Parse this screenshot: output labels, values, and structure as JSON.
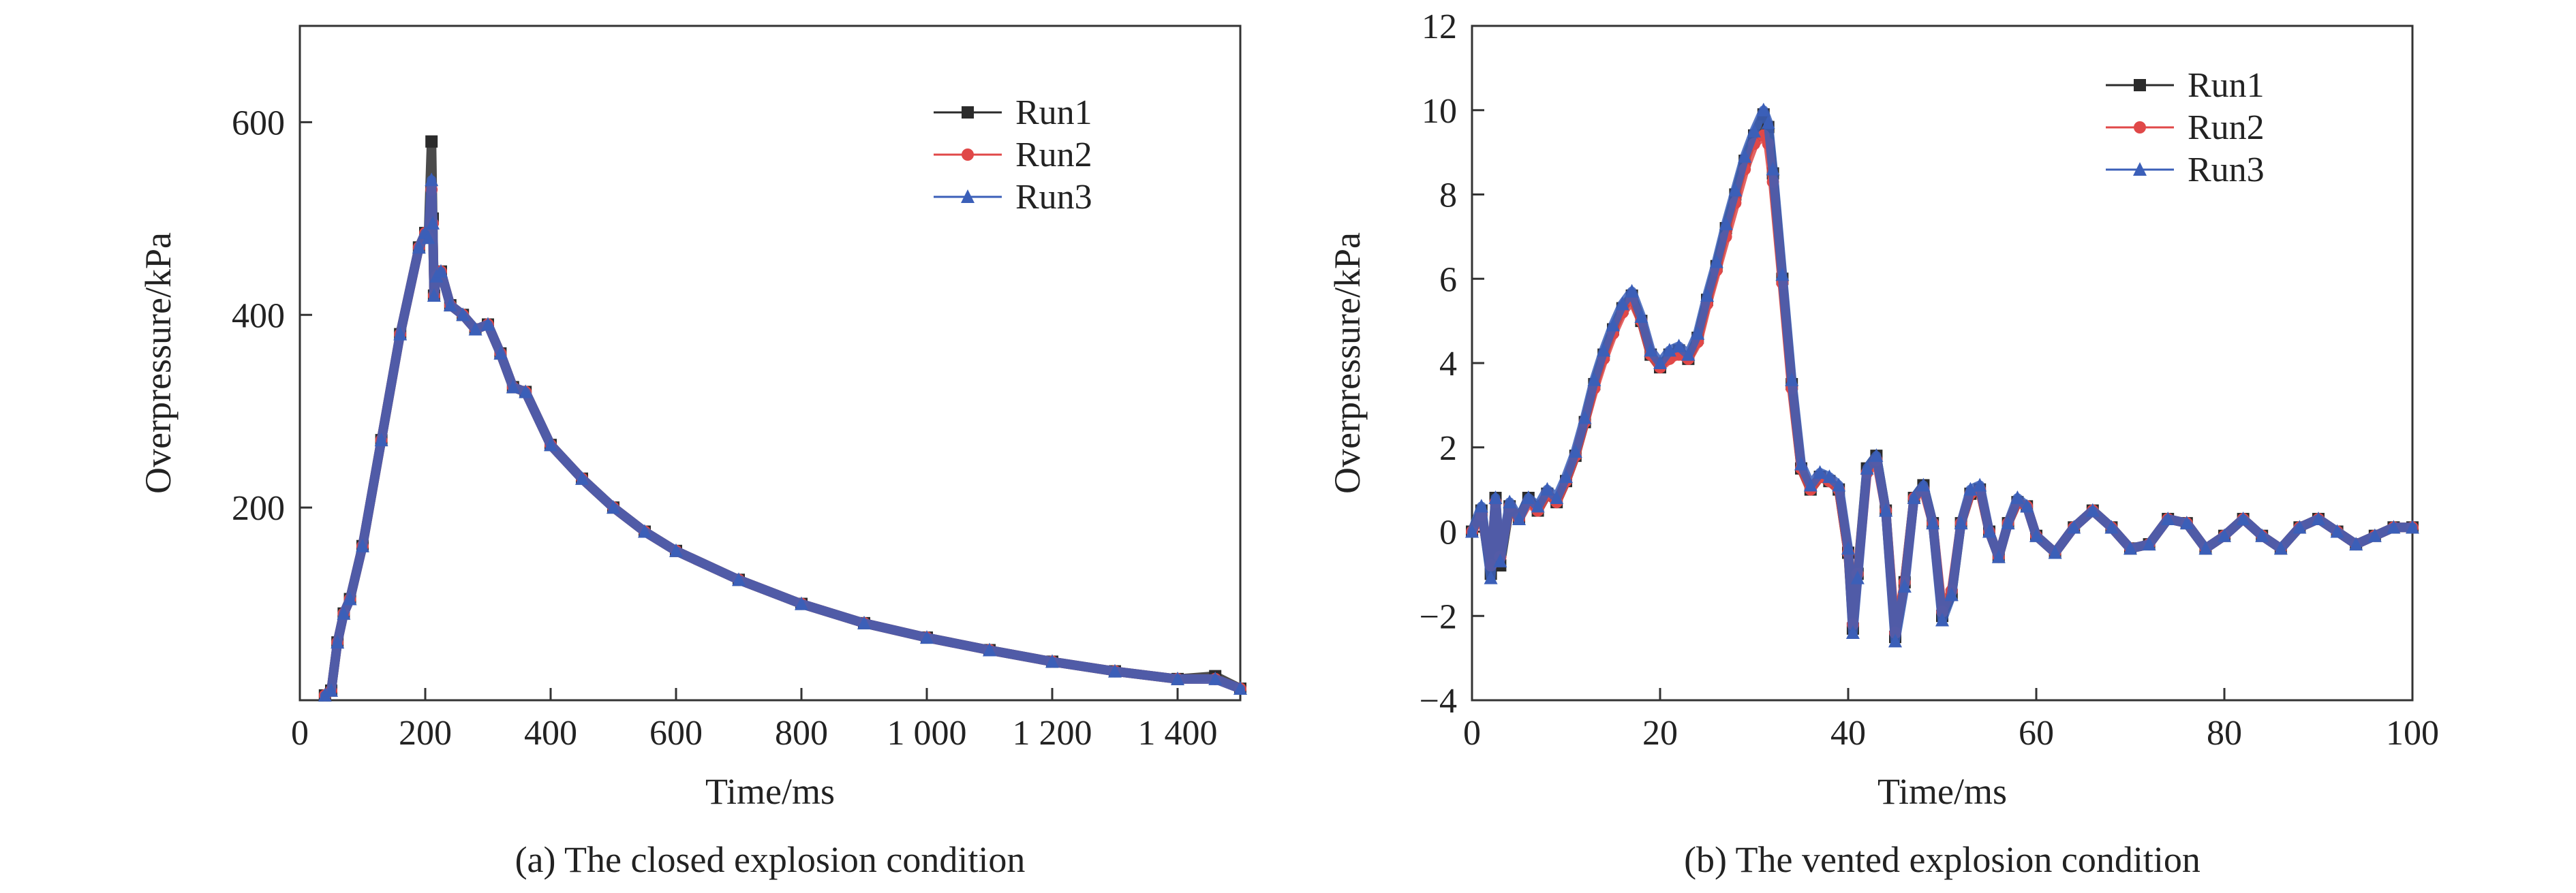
{
  "chart_data": [
    {
      "type": "line",
      "caption": "(a) The closed explosion condition",
      "xlabel": "Time/ms",
      "ylabel": "Overpressure/kPa",
      "xlim": [
        0,
        1500
      ],
      "ylim": [
        0,
        700
      ],
      "xticks": [
        0,
        200,
        400,
        600,
        800,
        1000,
        1200,
        1400
      ],
      "xtick_labels": [
        "0",
        "200",
        "400",
        "600",
        "800",
        "1 000",
        "1 200",
        "1 400"
      ],
      "yticks": [
        200,
        400,
        600
      ],
      "ytick_labels": [
        "200",
        "400",
        "600"
      ],
      "legend_position": "top-right",
      "grid": false,
      "series": [
        {
          "name": "Run1",
          "color": "#2b2b2b",
          "marker": "square",
          "x": [
            40,
            50,
            60,
            70,
            80,
            100,
            130,
            160,
            190,
            200,
            205,
            210,
            212,
            214,
            218,
            225,
            240,
            260,
            280,
            300,
            320,
            340,
            360,
            400,
            450,
            500,
            550,
            600,
            700,
            800,
            900,
            1000,
            1100,
            1200,
            1300,
            1400,
            1460,
            1500
          ],
          "y": [
            5,
            10,
            60,
            90,
            105,
            160,
            270,
            380,
            470,
            485,
            480,
            580,
            500,
            420,
            440,
            445,
            410,
            400,
            385,
            390,
            360,
            325,
            320,
            265,
            230,
            200,
            175,
            155,
            125,
            100,
            80,
            65,
            52,
            40,
            30,
            22,
            25,
            12
          ]
        },
        {
          "name": "Run2",
          "color": "#e04848",
          "marker": "circle",
          "x": [
            40,
            50,
            60,
            70,
            80,
            100,
            130,
            160,
            190,
            200,
            205,
            210,
            212,
            214,
            218,
            225,
            240,
            260,
            280,
            300,
            320,
            340,
            360,
            400,
            450,
            500,
            550,
            600,
            700,
            800,
            900,
            1000,
            1100,
            1200,
            1300,
            1400,
            1460,
            1500
          ],
          "y": [
            5,
            10,
            60,
            90,
            105,
            160,
            270,
            380,
            470,
            485,
            480,
            530,
            495,
            420,
            440,
            445,
            410,
            400,
            385,
            390,
            360,
            325,
            320,
            265,
            230,
            200,
            175,
            155,
            125,
            100,
            80,
            65,
            52,
            40,
            30,
            22,
            22,
            12
          ]
        },
        {
          "name": "Run3",
          "color": "#3b5fb8",
          "marker": "triangle",
          "x": [
            40,
            50,
            60,
            70,
            80,
            100,
            130,
            160,
            190,
            200,
            205,
            210,
            212,
            214,
            218,
            225,
            240,
            260,
            280,
            300,
            320,
            340,
            360,
            400,
            450,
            500,
            550,
            600,
            700,
            800,
            900,
            1000,
            1100,
            1200,
            1300,
            1400,
            1460,
            1500
          ],
          "y": [
            5,
            10,
            60,
            90,
            105,
            160,
            270,
            380,
            470,
            485,
            480,
            540,
            495,
            420,
            440,
            445,
            410,
            400,
            385,
            390,
            360,
            325,
            320,
            265,
            230,
            200,
            175,
            155,
            125,
            100,
            80,
            65,
            52,
            40,
            30,
            22,
            22,
            12
          ]
        }
      ]
    },
    {
      "type": "line",
      "caption": "(b) The vented explosion condition",
      "xlabel": "Time/ms",
      "ylabel": "Overpressure/kPa",
      "xlim": [
        0,
        100
      ],
      "ylim": [
        -4,
        12
      ],
      "xticks": [
        0,
        20,
        40,
        60,
        80,
        100
      ],
      "xtick_labels": [
        "0",
        "20",
        "40",
        "60",
        "80",
        "100"
      ],
      "yticks": [
        -4,
        -2,
        0,
        2,
        4,
        6,
        8,
        10,
        12
      ],
      "ytick_labels": [
        "−4",
        "−2",
        "0",
        "2",
        "4",
        "6",
        "8",
        "10",
        "12"
      ],
      "legend_position": "top-right",
      "grid": false,
      "series": [
        {
          "name": "Run1",
          "color": "#2b2b2b",
          "marker": "square",
          "x": [
            0,
            1,
            2,
            2.5,
            3,
            4,
            5,
            6,
            7,
            8,
            9,
            10,
            11,
            12,
            13,
            14,
            15,
            16,
            17,
            18,
            19,
            20,
            21,
            22,
            23,
            24,
            25,
            26,
            27,
            28,
            29,
            30,
            31,
            31.5,
            32,
            33,
            34,
            35,
            36,
            37,
            38,
            39,
            40,
            40.5,
            41,
            42,
            43,
            44,
            45,
            46,
            47,
            48,
            49,
            50,
            51,
            52,
            53,
            54,
            55,
            56,
            57,
            58,
            59,
            60,
            62,
            64,
            66,
            68,
            70,
            72,
            74,
            76,
            78,
            80,
            82,
            84,
            86,
            88,
            90,
            92,
            94,
            96,
            98,
            100
          ],
          "y": [
            0,
            0.5,
            -1,
            0.8,
            -0.8,
            0.6,
            0.3,
            0.8,
            0.5,
            0.9,
            0.7,
            1.2,
            1.8,
            2.6,
            3.5,
            4.2,
            4.8,
            5.3,
            5.6,
            5.0,
            4.2,
            3.9,
            4.2,
            4.3,
            4.1,
            4.6,
            5.5,
            6.3,
            7.2,
            8.0,
            8.8,
            9.4,
            9.9,
            9.6,
            8.5,
            6.0,
            3.5,
            1.5,
            1.0,
            1.3,
            1.2,
            1.0,
            -0.5,
            -2.3,
            -1.0,
            1.5,
            1.8,
            0.5,
            -2.5,
            -1.2,
            0.8,
            1.1,
            0.2,
            -2.0,
            -1.5,
            0.2,
            0.9,
            1.0,
            0.0,
            -0.6,
            0.2,
            0.7,
            0.6,
            -0.1,
            -0.5,
            0.1,
            0.5,
            0.1,
            -0.4,
            -0.3,
            0.3,
            0.2,
            -0.4,
            -0.1,
            0.3,
            -0.1,
            -0.4,
            0.1,
            0.3,
            0.0,
            -0.3,
            -0.1,
            0.1,
            0.1
          ]
        },
        {
          "name": "Run2",
          "color": "#e04848",
          "marker": "circle",
          "x": [
            0,
            1,
            2,
            2.5,
            3,
            4,
            5,
            6,
            7,
            8,
            9,
            10,
            11,
            12,
            13,
            14,
            15,
            16,
            17,
            18,
            19,
            20,
            21,
            22,
            23,
            24,
            25,
            26,
            27,
            28,
            29,
            30,
            31,
            31.5,
            32,
            33,
            34,
            35,
            36,
            37,
            38,
            39,
            40,
            40.5,
            41,
            42,
            43,
            44,
            45,
            46,
            47,
            48,
            49,
            50,
            51,
            52,
            53,
            54,
            55,
            56,
            57,
            58,
            59,
            60,
            62,
            64,
            66,
            68,
            70,
            72,
            74,
            76,
            78,
            80,
            82,
            84,
            86,
            88,
            90,
            92,
            94,
            96,
            98,
            100
          ],
          "y": [
            0,
            0.4,
            -0.8,
            0.7,
            -0.6,
            0.6,
            0.3,
            0.7,
            0.5,
            0.9,
            0.7,
            1.2,
            1.8,
            2.6,
            3.4,
            4.1,
            4.7,
            5.2,
            5.5,
            5.0,
            4.2,
            3.9,
            4.1,
            4.2,
            4.1,
            4.5,
            5.4,
            6.2,
            7.0,
            7.8,
            8.6,
            9.2,
            9.4,
            9.2,
            8.3,
            5.9,
            3.4,
            1.5,
            1.0,
            1.3,
            1.2,
            1.0,
            -0.5,
            -2.2,
            -1.0,
            1.4,
            1.7,
            0.5,
            -2.4,
            -1.2,
            0.8,
            1.0,
            0.2,
            -1.9,
            -1.4,
            0.2,
            0.9,
            1.0,
            0.0,
            -0.6,
            0.2,
            0.7,
            0.6,
            -0.1,
            -0.5,
            0.1,
            0.5,
            0.1,
            -0.4,
            -0.3,
            0.3,
            0.2,
            -0.4,
            -0.1,
            0.3,
            -0.1,
            -0.4,
            0.1,
            0.3,
            0.0,
            -0.3,
            -0.1,
            0.1,
            0.1
          ]
        },
        {
          "name": "Run3",
          "color": "#3b5fb8",
          "marker": "triangle",
          "x": [
            0,
            1,
            2,
            2.5,
            3,
            4,
            5,
            6,
            7,
            8,
            9,
            10,
            11,
            12,
            13,
            14,
            15,
            16,
            17,
            18,
            19,
            20,
            21,
            22,
            23,
            24,
            25,
            26,
            27,
            28,
            29,
            30,
            31,
            31.5,
            32,
            33,
            34,
            35,
            36,
            37,
            38,
            39,
            40,
            40.5,
            41,
            42,
            43,
            44,
            45,
            46,
            47,
            48,
            49,
            50,
            51,
            52,
            53,
            54,
            55,
            56,
            57,
            58,
            59,
            60,
            62,
            64,
            66,
            68,
            70,
            72,
            74,
            76,
            78,
            80,
            82,
            84,
            86,
            88,
            90,
            92,
            94,
            96,
            98,
            100
          ],
          "y": [
            0,
            0.6,
            -1.1,
            0.8,
            -0.7,
            0.7,
            0.3,
            0.8,
            0.6,
            1.0,
            0.8,
            1.3,
            1.9,
            2.7,
            3.6,
            4.3,
            4.9,
            5.4,
            5.7,
            5.1,
            4.3,
            4.0,
            4.3,
            4.4,
            4.2,
            4.7,
            5.6,
            6.4,
            7.3,
            8.1,
            8.9,
            9.5,
            10.0,
            9.7,
            8.6,
            6.1,
            3.6,
            1.6,
            1.1,
            1.4,
            1.3,
            1.1,
            -0.4,
            -2.4,
            -1.1,
            1.5,
            1.8,
            0.5,
            -2.6,
            -1.3,
            0.8,
            1.1,
            0.2,
            -2.1,
            -1.5,
            0.2,
            1.0,
            1.1,
            0.0,
            -0.6,
            0.2,
            0.8,
            0.6,
            -0.1,
            -0.5,
            0.1,
            0.5,
            0.1,
            -0.4,
            -0.3,
            0.3,
            0.2,
            -0.4,
            -0.1,
            0.3,
            -0.1,
            -0.4,
            0.1,
            0.3,
            0.0,
            -0.3,
            -0.1,
            0.1,
            0.1
          ]
        }
      ]
    }
  ]
}
